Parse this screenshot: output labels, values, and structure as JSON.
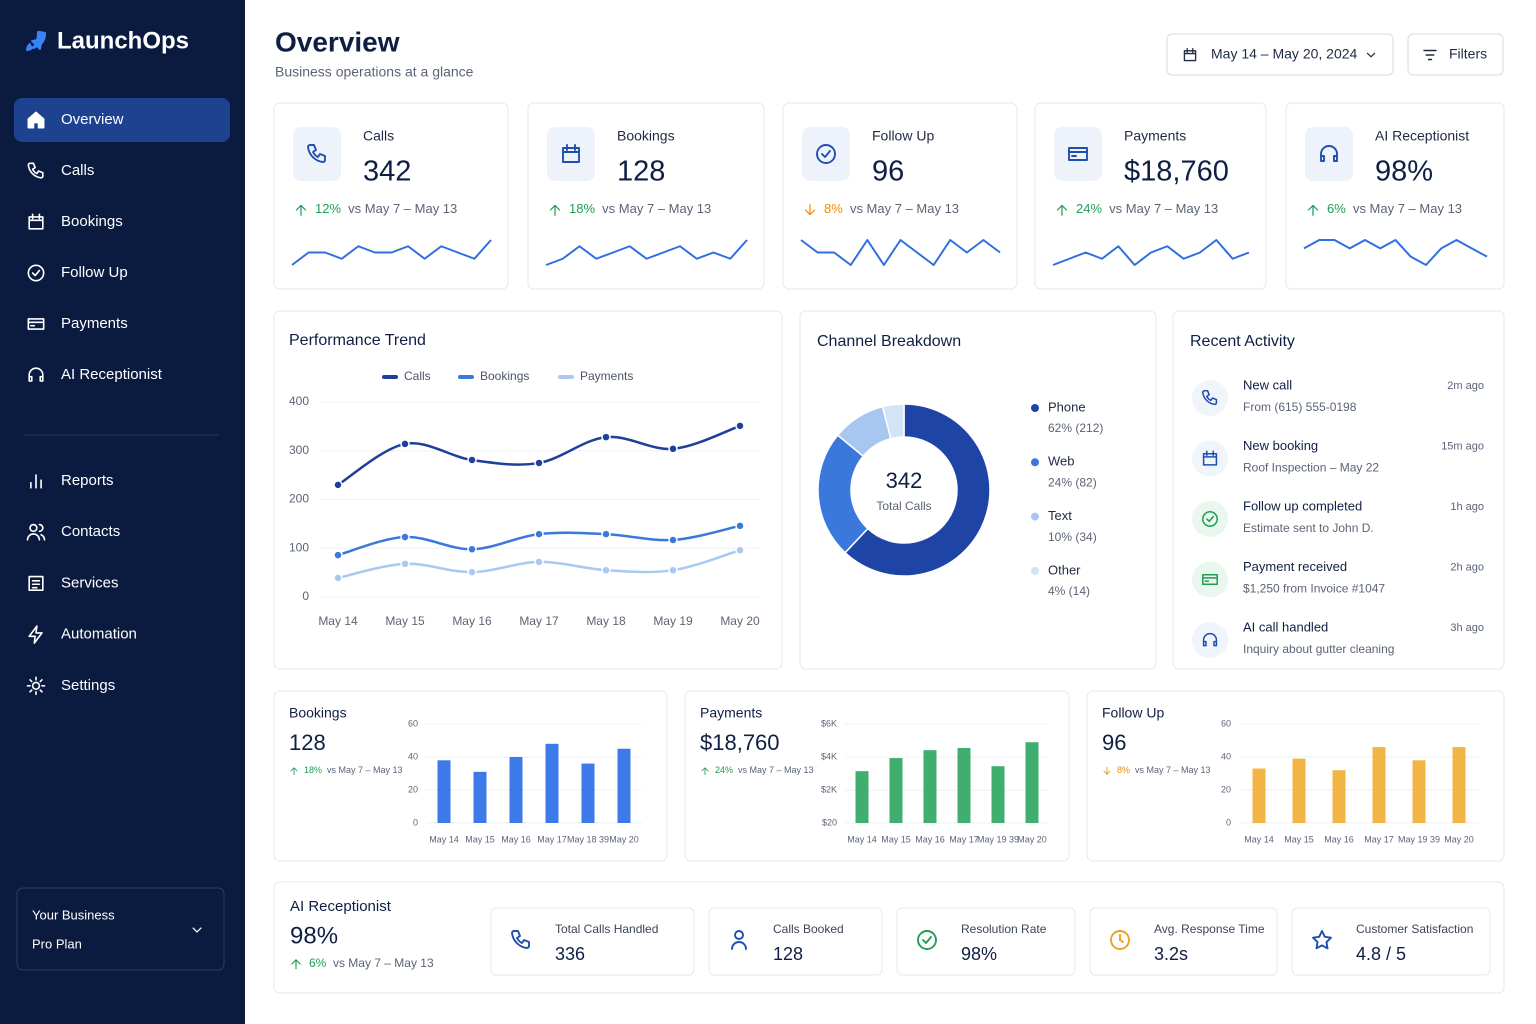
{
  "sidebar": {
    "brand": "LaunchOps",
    "nav": [
      {
        "label": "Overview",
        "active": true
      },
      {
        "label": "Calls"
      },
      {
        "label": "Bookings"
      },
      {
        "label": "Follow Up"
      },
      {
        "label": "Payments"
      },
      {
        "label": "AI Receptionist"
      }
    ],
    "nav_secondary": [
      {
        "label": "Reports"
      },
      {
        "label": "Contacts"
      },
      {
        "label": "Services"
      },
      {
        "label": "Automation"
      },
      {
        "label": "Settings"
      }
    ],
    "account": {
      "name": "Your Business",
      "plan": "Pro Plan"
    }
  },
  "header": {
    "title": "Overview",
    "subtitle": "Business operations at a glance",
    "date_range": "May 14 – May 20, 2024",
    "filters": "Filters"
  },
  "kpis": [
    {
      "label": "Calls",
      "value": "342",
      "change": "12%",
      "trend": "up",
      "compare": "vs May 7 – May 13",
      "color": "#2f6fe0",
      "sparkline": [
        3,
        5,
        5,
        4,
        6,
        5,
        5,
        6,
        4,
        6,
        5,
        4,
        7
      ]
    },
    {
      "label": "Bookings",
      "value": "128",
      "change": "18%",
      "trend": "up",
      "compare": "vs May 7 – May 13",
      "color": "#2f6fe0",
      "sparkline": [
        3,
        4,
        6,
        4,
        5,
        6,
        4,
        5,
        6,
        4,
        5,
        4,
        7
      ]
    },
    {
      "label": "Follow Up",
      "value": "96",
      "change": "8%",
      "trend": "down",
      "compare": "vs May 7 – May 13",
      "color": "#2f6fe0",
      "sparkline": [
        6,
        5,
        5,
        4,
        6,
        4,
        6,
        5,
        4,
        6,
        5,
        6,
        5
      ]
    },
    {
      "label": "Payments",
      "value": "$18,760",
      "change": "24%",
      "trend": "up",
      "compare": "vs May 7 – May 13",
      "color": "#2f6fe0",
      "sparkline": [
        3,
        4,
        5,
        4,
        6,
        3,
        5,
        6,
        4,
        5,
        7,
        4,
        5
      ]
    },
    {
      "label": "AI Receptionist",
      "value": "98%",
      "change": "6%",
      "trend": "up",
      "compare": "vs May 7 – May 13",
      "color": "#2f6fe0",
      "sparkline": [
        5,
        6,
        6,
        5,
        6,
        5,
        6,
        4,
        3,
        5,
        6,
        5,
        4
      ]
    }
  ],
  "performance_trend": {
    "type": "line",
    "title": "Performance Trend",
    "categories": [
      "May 14",
      "May 15",
      "May 16",
      "May 17",
      "May 18",
      "May 19",
      "May 20"
    ],
    "series": [
      {
        "name": "Calls",
        "color": "#1e3f9a",
        "values": [
          230,
          314,
          281,
          275,
          328,
          304,
          351
        ]
      },
      {
        "name": "Bookings",
        "color": "#3b78dc",
        "values": [
          86,
          123,
          98,
          129,
          129,
          117,
          146
        ]
      },
      {
        "name": "Payments",
        "color": "#a9c8f2",
        "values": [
          39,
          68,
          51,
          72,
          55,
          55,
          96
        ]
      }
    ],
    "ylim": [
      0,
      400
    ],
    "yticks": [
      0,
      100,
      200,
      300,
      400
    ],
    "grid": true
  },
  "channel_breakdown": {
    "type": "pie",
    "title": "Channel Breakdown",
    "center_value": "342",
    "center_label": "Total Calls",
    "categories": [
      "Phone",
      "Web",
      "Text",
      "Other"
    ],
    "values": [
      62,
      24,
      10,
      4
    ],
    "value_labels": [
      "62% (212)",
      "24% (82)",
      "10% (34)",
      "4% (14)"
    ],
    "colors": [
      "#1e45a6",
      "#3b78dc",
      "#a8c7f0",
      "#d3e3f8"
    ]
  },
  "recent_activity": {
    "title": "Recent Activity",
    "items": [
      {
        "title": "New call",
        "detail": "From (615) 555-0198",
        "time": "2m ago"
      },
      {
        "title": "New booking",
        "detail": "Roof Inspection – May 22",
        "time": "15m ago"
      },
      {
        "title": "Follow up completed",
        "detail": "Estimate sent to John D.",
        "time": "1h ago"
      },
      {
        "title": "Payment received",
        "detail": "$1,250 from Invoice #1047",
        "time": "2h ago"
      },
      {
        "title": "AI call handled",
        "detail": "Inquiry about gutter cleaning",
        "time": "3h ago"
      }
    ]
  },
  "mini_charts": [
    {
      "type": "bar",
      "title": "Bookings",
      "value": "128",
      "change": "18%",
      "trend": "up",
      "compare": "vs May 7 – May 13",
      "color": "#3b7ae8",
      "categories": [
        "May 14",
        "May 15",
        "May 16",
        "May 17",
        "May 18 39",
        "May 20"
      ],
      "values": [
        38,
        31,
        40,
        48,
        36,
        45
      ],
      "ylim": [
        0,
        60
      ],
      "yticks": [
        0,
        20,
        40,
        60
      ],
      "grid": true
    },
    {
      "type": "bar",
      "title": "Payments",
      "value": "$18,760",
      "change": "24%",
      "trend": "up",
      "compare": "vs May 7 – May 13",
      "color": "#3fae6e",
      "categories": [
        "May 14",
        "May 15",
        "May 16",
        "May 17",
        "May 19 39",
        "May 20"
      ],
      "values": [
        3150,
        3940,
        4420,
        4550,
        3450,
        4900
      ],
      "ylim": [
        20,
        6000
      ],
      "yticks": [
        {
          "value": 20,
          "label": "$20"
        },
        {
          "value": 2000,
          "label": "$2K"
        },
        {
          "value": 4000,
          "label": "$4K"
        },
        {
          "value": 6000,
          "label": "$6K"
        }
      ],
      "grid": true
    },
    {
      "type": "bar",
      "title": "Follow Up",
      "value": "96",
      "change": "8%",
      "trend": "down",
      "compare": "vs May 7 – May 13",
      "color": "#f2b445",
      "categories": [
        "May 14",
        "May 15",
        "May 16",
        "May 17",
        "May 19 39",
        "May 20"
      ],
      "values": [
        33,
        39,
        32,
        46,
        38,
        46
      ],
      "ylim": [
        0,
        60
      ],
      "yticks": [
        0,
        20,
        40,
        60
      ],
      "grid": true
    }
  ],
  "ai_receptionist": {
    "title": "AI Receptionist",
    "value": "98%",
    "change": "6%",
    "trend": "up",
    "compare": "vs May 7 – May 13",
    "stats": [
      {
        "label": "Total Calls Handled",
        "value": "336"
      },
      {
        "label": "Calls Booked",
        "value": "128"
      },
      {
        "label": "Resolution Rate",
        "value": "98%"
      },
      {
        "label": "Avg. Response Time",
        "value": "3.2s"
      },
      {
        "label": "Customer Satisfaction",
        "value": "4.8 / 5"
      }
    ]
  }
}
